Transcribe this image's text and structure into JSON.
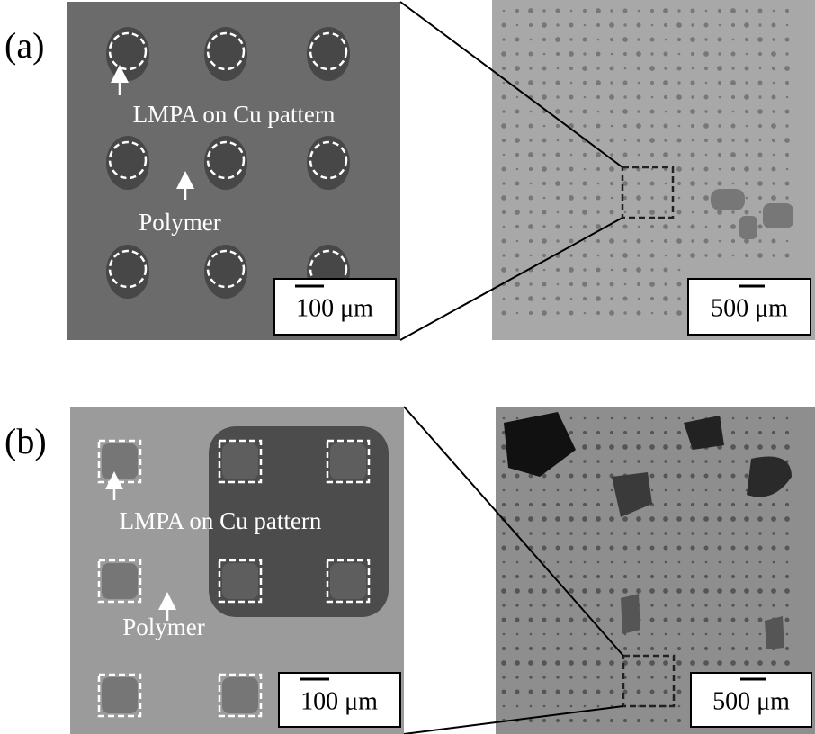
{
  "panels": [
    {
      "label": "(a)",
      "annotations": [
        "LMPA on Cu pattern",
        "Polymer"
      ],
      "scale_bars": [
        "100 μm",
        "500 μm"
      ]
    },
    {
      "label": "(b)",
      "annotations": [
        "LMPA on Cu pattern",
        "Polymer"
      ],
      "scale_bars": [
        "100 μm",
        "500 μm"
      ]
    }
  ]
}
